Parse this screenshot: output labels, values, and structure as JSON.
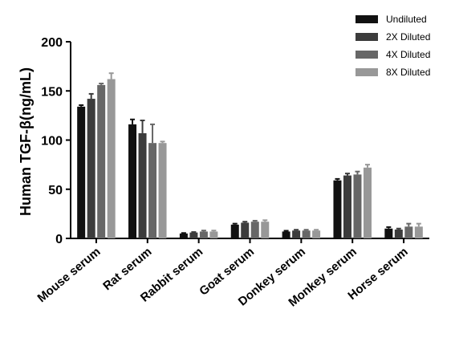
{
  "chart_data": {
    "type": "bar",
    "title": "",
    "xlabel": "",
    "ylabel": "Human TGF-β(ng/mL)",
    "ylim": [
      0,
      200
    ],
    "yticks": [
      "0",
      "50",
      "100",
      "150",
      "200"
    ],
    "grid": false,
    "legend_position": "top-right",
    "categories": [
      "Mouse serum",
      "Rat serum",
      "Rabbit serum",
      "Goat serum",
      "Donkey serum",
      "Monkey serum",
      "Horse serum"
    ],
    "series": [
      {
        "name": "Undiluted",
        "color": "#111111",
        "values": [
          134,
          116,
          5,
          14,
          7,
          59,
          10
        ],
        "errors": [
          1.5,
          5,
          0.5,
          1,
          0.8,
          1.5,
          1.5
        ]
      },
      {
        "name": "2X Diluted",
        "color": "#3c3c3c",
        "values": [
          142,
          107,
          6,
          16,
          8,
          64,
          9
        ],
        "errors": [
          5,
          13,
          0.5,
          1,
          0.8,
          2,
          1
        ]
      },
      {
        "name": "4X Diluted",
        "color": "#676767",
        "values": [
          156,
          97,
          7,
          17,
          8,
          65,
          12
        ],
        "errors": [
          1.5,
          19,
          1,
          1,
          0.8,
          3,
          3
        ]
      },
      {
        "name": "8X Diluted",
        "color": "#989898",
        "values": [
          162,
          97,
          7,
          17,
          8,
          72,
          12
        ],
        "errors": [
          6,
          1.5,
          1,
          1.5,
          0.8,
          3,
          3
        ]
      }
    ]
  }
}
